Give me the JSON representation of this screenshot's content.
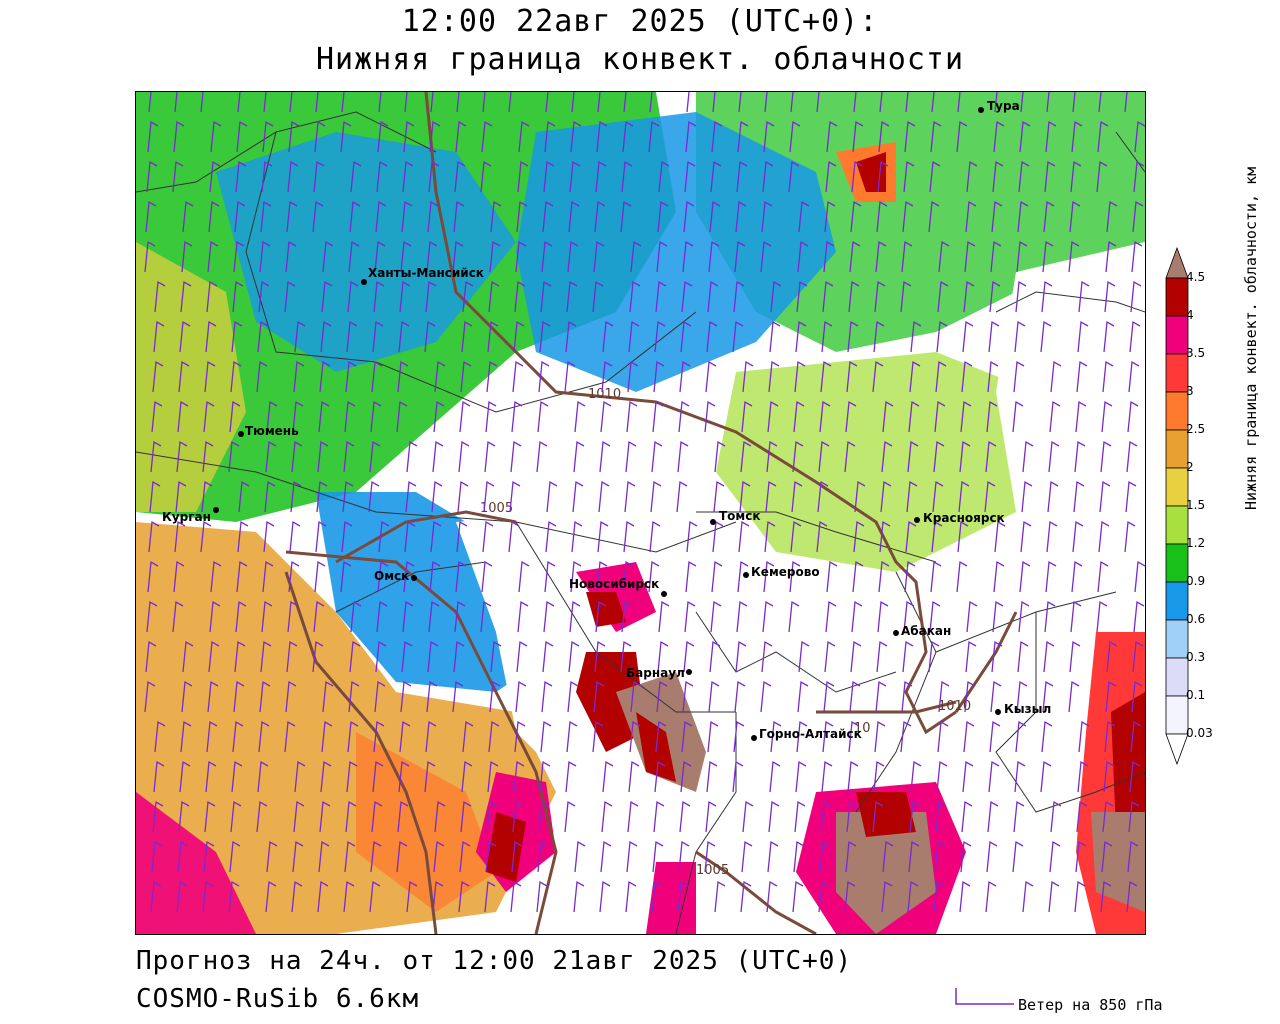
{
  "header": {
    "line1": "12:00 22авг 2025 (UTC+0):",
    "line2": "Нижняя граница конвект. облачности"
  },
  "footer": {
    "forecast": "Прогноз на 24ч. от 12:00 21авг 2025 (UTC+0)",
    "model": "COSMO-RuSib 6.6км",
    "wind_key": "Ветер на 850 гПа"
  },
  "legend": {
    "title": "Нижняя граница конвект. облачности, км",
    "levels": [
      "4.5",
      "4",
      "3.5",
      "3",
      "2.5",
      "2",
      "1.5",
      "1.2",
      "0.9",
      "0.6",
      "0.3",
      "0.1",
      "0.03"
    ],
    "colors": [
      "#a97d6e",
      "#b30000",
      "#f0007a",
      "#ff3838",
      "#ff7a2e",
      "#e8a030",
      "#e8d040",
      "#a8e040",
      "#18c018",
      "#1898e8",
      "#9fd0f8",
      "#dcdcf8",
      "#f4f4ff"
    ]
  },
  "isobars": [
    "1010",
    "1005",
    "1010",
    "1005",
    "10"
  ],
  "cities": [
    {
      "name": "Тура"
    },
    {
      "name": "Ханты-Мансийск"
    },
    {
      "name": "Тюмень"
    },
    {
      "name": "Курган"
    },
    {
      "name": "Омск"
    },
    {
      "name": "Томск"
    },
    {
      "name": "Красноярск"
    },
    {
      "name": "Кемерово"
    },
    {
      "name": "Новосибирск"
    },
    {
      "name": "Абакан"
    },
    {
      "name": "Барнаул"
    },
    {
      "name": "Кызыл"
    },
    {
      "name": "Горно-Алтайск"
    }
  ]
}
